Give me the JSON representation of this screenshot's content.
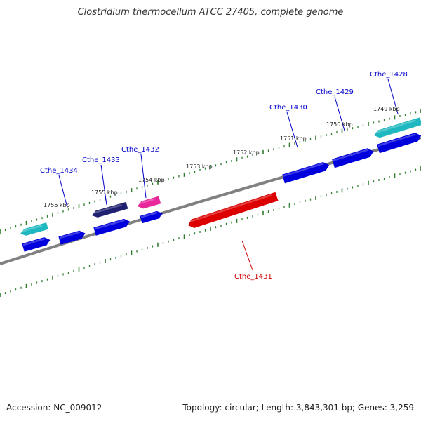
{
  "title": "Clostridium thermocellum ATCC 27405, complete genome",
  "footer": {
    "accession": "Accession: NC_009012",
    "summary": "Topology: circular; Length: 3,843,301 bp; Genes: 3,259"
  },
  "colors": {
    "backbone": "#808080",
    "ticks": "#2e7d2e",
    "gene_blue": "#0000dd",
    "gene_cyan": "#20b8c0",
    "gene_magenta": "#e8289a",
    "gene_red": "#dd0000",
    "gene_navy": "#202070",
    "label_blue": "#0000cc",
    "label_red": "#cc0000"
  },
  "kbp_labels": [
    "1756 kbp",
    "1755 kbp",
    "1754 kbp",
    "1753 kbp",
    "1752 kbp",
    "1751 kbp",
    "1750 kbp",
    "1749 kbp"
  ],
  "gene_labels": [
    {
      "text": "Cthe_1434",
      "color": "blue"
    },
    {
      "text": "Cthe_1433",
      "color": "blue"
    },
    {
      "text": "Cthe_1432",
      "color": "blue"
    },
    {
      "text": "Cthe_1430",
      "color": "blue"
    },
    {
      "text": "Cthe_1429",
      "color": "blue"
    },
    {
      "text": "Cthe_1428",
      "color": "blue"
    },
    {
      "text": "Cthe_1431",
      "color": "red"
    }
  ]
}
